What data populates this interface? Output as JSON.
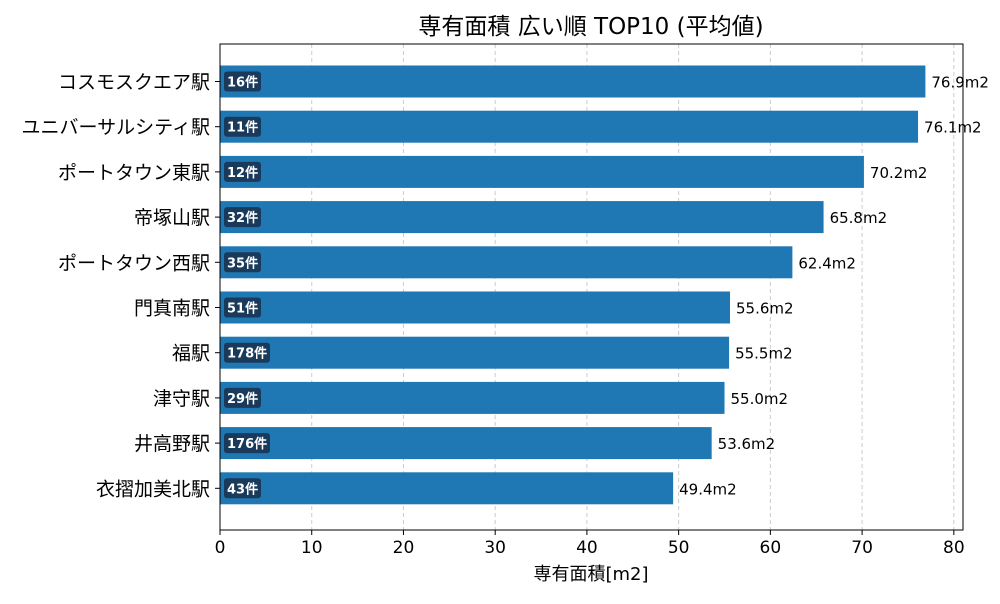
{
  "chart_data": {
    "type": "bar",
    "orientation": "horizontal",
    "title": "専有面積 広い順 TOP10 (平均値)",
    "xlabel": "専有面積[m2]",
    "ylabel": "",
    "xlim": [
      0,
      81
    ],
    "xticks": [
      0,
      10,
      20,
      30,
      40,
      50,
      60,
      70,
      80
    ],
    "grid": "vertical dashed",
    "categories": [
      "コスモスクエア駅",
      "ユニバーサルシティ駅",
      "ポートタウン東駅",
      "帝塚山駅",
      "ポートタウン西駅",
      "門真南駅",
      "福駅",
      "津守駅",
      "井高野駅",
      "衣摺加美北駅"
    ],
    "values": [
      76.9,
      76.1,
      70.2,
      65.8,
      62.4,
      55.6,
      55.5,
      55.0,
      53.6,
      49.4
    ],
    "value_labels": [
      "76.9m2",
      "76.1m2",
      "70.2m2",
      "65.8m2",
      "62.4m2",
      "55.6m2",
      "55.5m2",
      "55.0m2",
      "53.6m2",
      "49.4m2"
    ],
    "count_labels": [
      "16件",
      "11件",
      "12件",
      "32件",
      "35件",
      "51件",
      "178件",
      "29件",
      "176件",
      "43件"
    ],
    "colors": {
      "bar": "#1f77b4",
      "badge": "#1a3a5c",
      "badge_text": "#ffffff",
      "grid": "#cccccc",
      "text": "#000000"
    }
  }
}
